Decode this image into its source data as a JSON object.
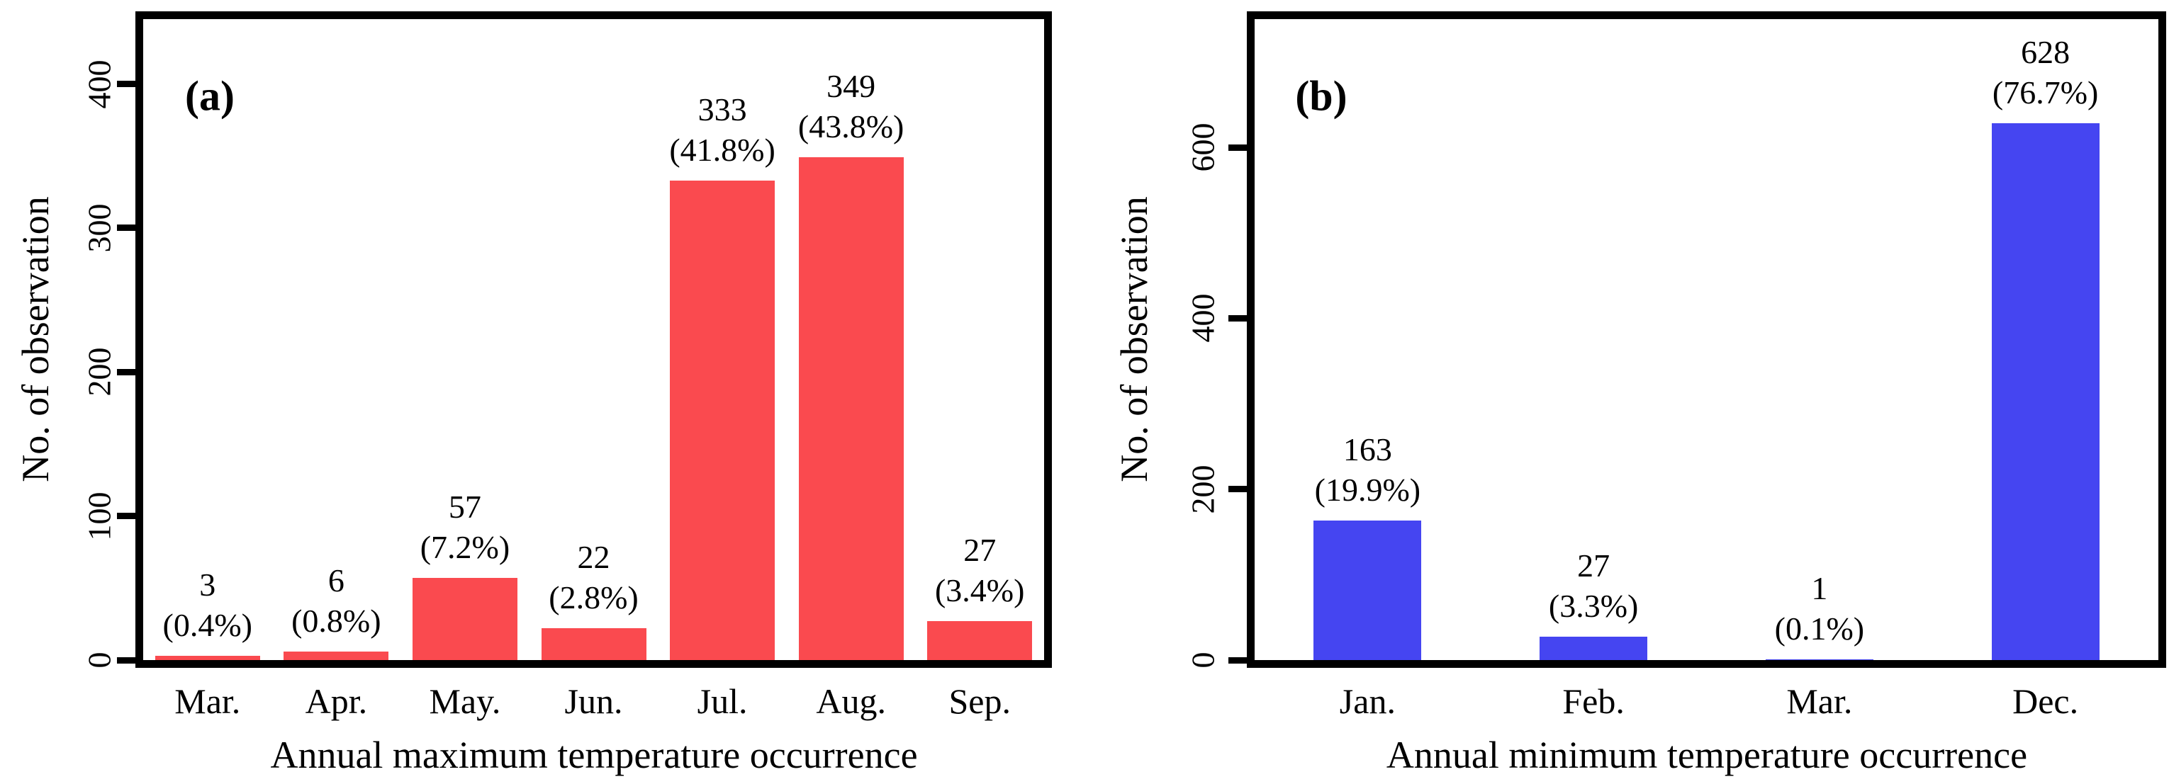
{
  "figure": {
    "background": "#ffffff",
    "frame_color": "#000000",
    "text_color": "#000000"
  },
  "chart_data": [
    {
      "type": "bar",
      "panel_label": "(a)",
      "categories": [
        "Mar.",
        "Apr.",
        "May.",
        "Jun.",
        "Jul.",
        "Aug.",
        "Sep."
      ],
      "values": [
        3,
        6,
        57,
        22,
        333,
        349,
        27
      ],
      "pct_labels": [
        "(0.4%)",
        "(0.8%)",
        "(7.2%)",
        "(2.8%)",
        "(41.8%)",
        "(43.8%)",
        "(3.4%)"
      ],
      "title": "",
      "xlabel": "Annual maximum temperature occurrence",
      "ylabel": "No. of observation",
      "yticks": [
        0,
        100,
        200,
        300,
        400
      ],
      "ylim": [
        0,
        445
      ],
      "bar_color": "#fa4a4f",
      "grid": false,
      "legend": "none"
    },
    {
      "type": "bar",
      "panel_label": "(b)",
      "categories": [
        "Jan.",
        "Feb.",
        "Mar.",
        "Dec."
      ],
      "values": [
        163,
        27,
        1,
        628
      ],
      "pct_labels": [
        "(19.9%)",
        "(3.3%)",
        "(0.1%)",
        "(76.7%)"
      ],
      "title": "",
      "xlabel": "Annual minimum temperature occurrence",
      "ylabel": "No. of observation",
      "yticks": [
        0,
        200,
        400,
        600
      ],
      "ylim": [
        0,
        750
      ],
      "bar_color": "#4545f1",
      "grid": false,
      "legend": "none"
    }
  ]
}
